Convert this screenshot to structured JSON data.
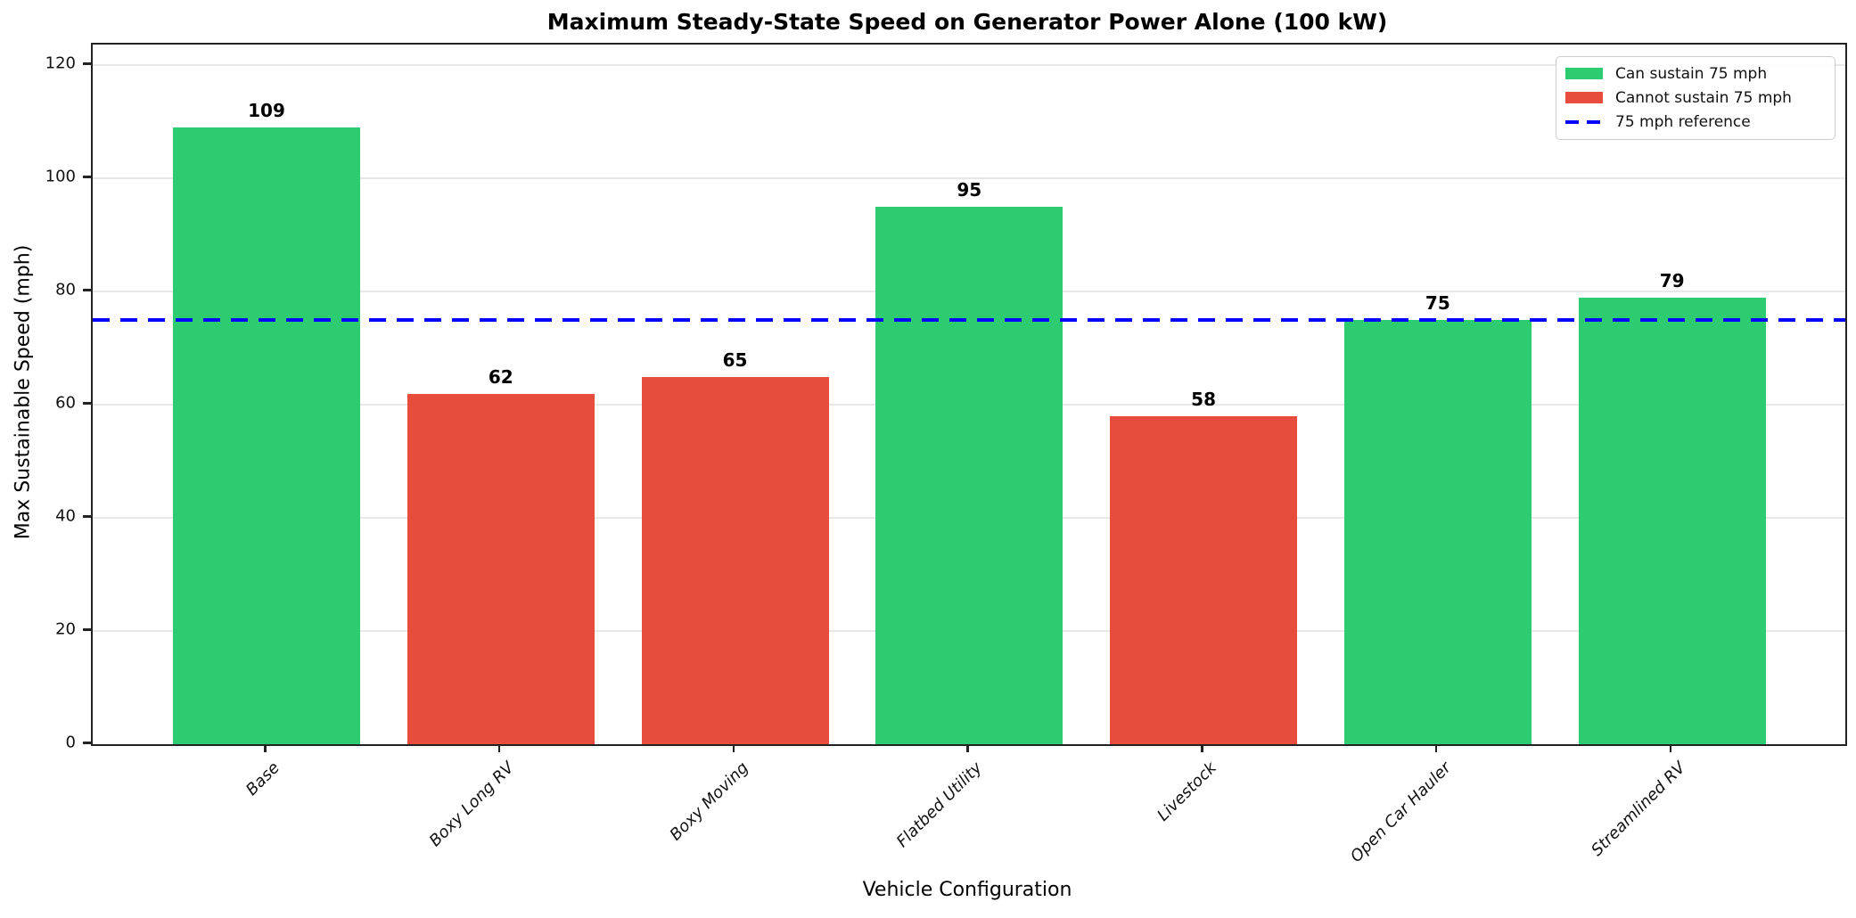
{
  "title": "Maximum Steady-State Speed on Generator Power Alone (100 kW)",
  "chart_data": {
    "type": "bar",
    "title": "Maximum Steady-State Speed on Generator Power Alone (100 kW)",
    "xlabel": "Vehicle Configuration",
    "ylabel": "Max Sustainable Speed (mph)",
    "categories": [
      "Base",
      "Boxy Long RV",
      "Boxy Moving",
      "Flatbed Utility",
      "Livestock",
      "Open Car Hauler",
      "Streamlined RV"
    ],
    "values": [
      109,
      62,
      65,
      95,
      58,
      75,
      79
    ],
    "can_sustain_75": [
      true,
      false,
      false,
      true,
      false,
      true,
      true
    ],
    "bar_colors": [
      "#2ecc71",
      "#e74c3c",
      "#e74c3c",
      "#2ecc71",
      "#e74c3c",
      "#2ecc71",
      "#2ecc71"
    ],
    "value_labels": [
      "109",
      "62",
      "65",
      "95",
      "58",
      "75",
      "79"
    ],
    "yticks": [
      0,
      20,
      40,
      60,
      80,
      100,
      120
    ],
    "ylim": [
      0,
      123.7
    ],
    "grid": true,
    "legend_position": "upper right",
    "reference_line": {
      "value": 75,
      "label": "75 mph reference",
      "color": "#0000ff",
      "style": "dashed"
    },
    "legend": [
      {
        "label": "Can sustain 75 mph",
        "swatch": "patch",
        "color": "#2ecc71",
        "name": "can-sustain"
      },
      {
        "label": "Cannot sustain 75 mph",
        "swatch": "patch",
        "color": "#e74c3c",
        "name": "cannot-sustain"
      },
      {
        "label": "75 mph reference",
        "swatch": "dashed-line",
        "color": "#0000ff",
        "name": "reference"
      }
    ],
    "colors": {
      "sustain_green": "#2ecc71",
      "fail_red": "#e74c3c",
      "reference_blue": "#0000ff",
      "grid_gray": "#e8e8e8",
      "spine_dark": "#222222"
    }
  }
}
